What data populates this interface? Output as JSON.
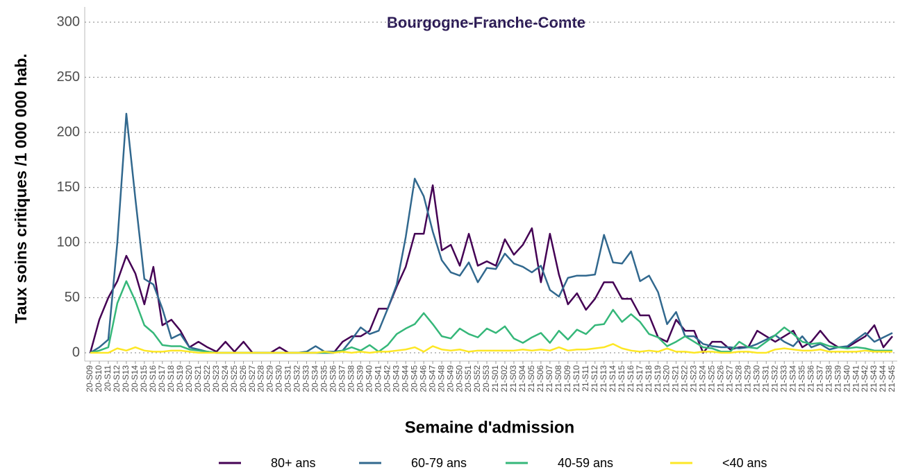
{
  "chart_data": {
    "type": "line",
    "title": "Bourgogne-Franche-Comte",
    "x_label": "Semaine d'admission",
    "y_label": "Taux soins critiques /1 000 000 hab.",
    "categories": [
      "20-S09",
      "20-S10",
      "20-S11",
      "20-S12",
      "20-S13",
      "20-S14",
      "20-S15",
      "20-S16",
      "20-S17",
      "20-S18",
      "20-S19",
      "20-S20",
      "20-S21",
      "20-S22",
      "20-S23",
      "20-S24",
      "20-S25",
      "20-S26",
      "20-S27",
      "20-S28",
      "20-S29",
      "20-S30",
      "20-S31",
      "20-S32",
      "20-S33",
      "20-S34",
      "20-S35",
      "20-S36",
      "20-S37",
      "20-S38",
      "20-S39",
      "20-S40",
      "20-S41",
      "20-S42",
      "20-S43",
      "20-S44",
      "20-S45",
      "20-S46",
      "20-S47",
      "20-S48",
      "20-S49",
      "20-S50",
      "20-S51",
      "20-S52",
      "20-S53",
      "21-S01",
      "21-S02",
      "21-S03",
      "21-S04",
      "21-S05",
      "21-S06",
      "21-S07",
      "21-S08",
      "21-S09",
      "21-S10",
      "21-S11",
      "21-S12",
      "21-S13",
      "21-S14",
      "21-S15",
      "21-S16",
      "21-S17",
      "21-S18",
      "21-S19",
      "21-S20",
      "21-S21",
      "21-S22",
      "21-S23",
      "21-S24",
      "21-S25",
      "21-S26",
      "21-S27",
      "21-S28",
      "21-S29",
      "21-S30",
      "21-S31",
      "21-S32",
      "21-S33",
      "21-S34",
      "21-S35",
      "21-S36",
      "21-S37",
      "21-S38",
      "21-S39",
      "21-S40",
      "21-S41",
      "21-S42",
      "21-S43",
      "21-S44",
      "21-S45"
    ],
    "series": [
      {
        "name": "80+ ans",
        "color": "#440154",
        "values": [
          0,
          30,
          50,
          65,
          88,
          72,
          44,
          78,
          25,
          30,
          20,
          5,
          10,
          5,
          1,
          10,
          1,
          10,
          0,
          0,
          0,
          5,
          0,
          0,
          0,
          0,
          0,
          0,
          10,
          15,
          15,
          20,
          40,
          40,
          60,
          78,
          108,
          108,
          152,
          93,
          98,
          79,
          108,
          79,
          83,
          79,
          103,
          89,
          98,
          113,
          64,
          108,
          71,
          44,
          54,
          39,
          49,
          64,
          64,
          49,
          49,
          34,
          34,
          14,
          10,
          30,
          20,
          20,
          0,
          10,
          10,
          3,
          5,
          5,
          20,
          15,
          10,
          15,
          20,
          5,
          10,
          20,
          10,
          5,
          5,
          10,
          15,
          25,
          5,
          15
        ]
      },
      {
        "name": "60-79 ans",
        "color": "#31688e",
        "values": [
          0,
          5,
          12,
          100,
          217,
          140,
          67,
          62,
          40,
          13,
          17,
          5,
          3,
          1,
          0,
          0,
          0,
          0,
          0,
          0,
          0,
          0,
          0,
          0,
          1,
          6,
          1,
          1,
          2,
          12,
          23,
          17,
          20,
          40,
          62,
          105,
          158,
          142,
          110,
          84,
          73,
          70,
          82,
          64,
          77,
          76,
          90,
          81,
          78,
          73,
          79,
          57,
          51,
          68,
          70,
          70,
          71,
          107,
          82,
          81,
          92,
          65,
          70,
          55,
          26,
          37,
          15,
          15,
          8,
          6,
          5,
          5,
          4,
          5,
          8,
          12,
          16,
          10,
          6,
          15,
          5,
          8,
          3,
          5,
          6,
          12,
          18,
          10,
          14,
          18
        ]
      },
      {
        "name": "40-59 ans",
        "color": "#35b779",
        "values": [
          0,
          2,
          5,
          45,
          65,
          47,
          25,
          18,
          7,
          6,
          6,
          3,
          2,
          1,
          0,
          0,
          0,
          0,
          0,
          0,
          0,
          0,
          0,
          0,
          0,
          0,
          0,
          0,
          2,
          5,
          2,
          7,
          1,
          7,
          17,
          22,
          26,
          36,
          26,
          15,
          13,
          22,
          17,
          14,
          22,
          18,
          24,
          13,
          9,
          14,
          18,
          9,
          20,
          12,
          21,
          17,
          25,
          26,
          39,
          28,
          35,
          28,
          17,
          14,
          6,
          10,
          15,
          10,
          5,
          4,
          1,
          1,
          10,
          5,
          4,
          10,
          16,
          23,
          17,
          10,
          8,
          9,
          6,
          5,
          4,
          5,
          4,
          2,
          2,
          2
        ]
      },
      {
        "name": "<40 ans",
        "color": "#fde725",
        "values": [
          0,
          0,
          0,
          4,
          2,
          5,
          2,
          1,
          1,
          2,
          2,
          1,
          0,
          0,
          0,
          0,
          0,
          0,
          0,
          0,
          0,
          0,
          0,
          0,
          0,
          0,
          1,
          0,
          1,
          0,
          1,
          0,
          1,
          1,
          2,
          3,
          5,
          1,
          6,
          3,
          2,
          3,
          1,
          2,
          2,
          2,
          2,
          2,
          3,
          2,
          3,
          2,
          5,
          2,
          3,
          3,
          4,
          5,
          8,
          4,
          2,
          1,
          2,
          1,
          4,
          1,
          1,
          0,
          1,
          1,
          0,
          0,
          1,
          1,
          0,
          0,
          3,
          4,
          3,
          2,
          2,
          3,
          1,
          1,
          1,
          1,
          2,
          1,
          1,
          1
        ]
      }
    ],
    "ylim": [
      -8,
      315
    ],
    "yticks": [
      0,
      50,
      100,
      150,
      200,
      250,
      300
    ],
    "grid": true,
    "legend": "bottom"
  }
}
